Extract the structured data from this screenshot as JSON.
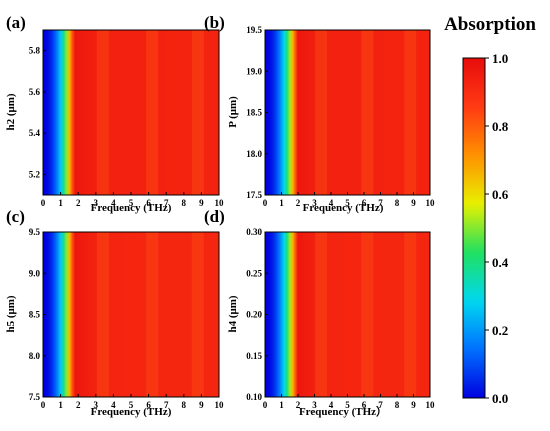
{
  "colorbar": {
    "title": "Absorption",
    "ticks": [
      0.0,
      0.2,
      0.4,
      0.6,
      0.8,
      1.0
    ],
    "tick_labels": [
      "0.0",
      "0.2",
      "0.4",
      "0.6",
      "0.8",
      "1.0"
    ],
    "range": [
      0,
      1
    ],
    "colormap": [
      "#0000e0",
      "#0070ff",
      "#00d8f0",
      "#20e060",
      "#e8f000",
      "#ff9000",
      "#ff3a14",
      "#e80c0c"
    ]
  },
  "chart_data": [
    {
      "type": "heatmap",
      "panel_label": "(a)",
      "xlabel": "Frequency (THz)",
      "ylabel": "h2 (μm)",
      "xlim": [
        0,
        10
      ],
      "ylim": [
        5.1,
        5.9
      ],
      "xticks": [
        0,
        1,
        2,
        3,
        4,
        5,
        6,
        7,
        8,
        9,
        10
      ],
      "xtick_labels": [
        "0",
        "1",
        "2",
        "3",
        "4",
        "5",
        "6",
        "7",
        "8",
        "9",
        "10"
      ],
      "yticks": [
        5.2,
        5.4,
        5.6,
        5.8
      ],
      "ytick_labels": [
        "5.2",
        "5.4",
        "5.6",
        "5.8"
      ],
      "edge_freq": 1.8,
      "plateau": 0.93
    },
    {
      "type": "heatmap",
      "panel_label": "(b)",
      "xlabel": "Frequency (THz)",
      "ylabel": "P (μm)",
      "xlim": [
        0,
        10
      ],
      "ylim": [
        17.5,
        19.5
      ],
      "xticks": [
        0,
        1,
        2,
        3,
        4,
        5,
        6,
        7,
        8,
        9,
        10
      ],
      "xtick_labels": [
        "0",
        "1",
        "2",
        "3",
        "4",
        "5",
        "6",
        "7",
        "8",
        "9",
        "10"
      ],
      "yticks": [
        17.5,
        18.0,
        18.5,
        19.0,
        19.5
      ],
      "ytick_labels": [
        "17.5",
        "18.0",
        "18.5",
        "19.0",
        "19.5"
      ],
      "edge_freq": 2.0,
      "plateau": 0.93
    },
    {
      "type": "heatmap",
      "panel_label": "(c)",
      "xlabel": "Frequency (THz)",
      "ylabel": "h5 (μm)",
      "xlim": [
        0,
        10
      ],
      "ylim": [
        7.5,
        9.5
      ],
      "xticks": [
        0,
        1,
        2,
        3,
        4,
        5,
        6,
        7,
        8,
        9,
        10
      ],
      "xtick_labels": [
        "0",
        "1",
        "2",
        "3",
        "4",
        "5",
        "6",
        "7",
        "8",
        "9",
        "10"
      ],
      "yticks": [
        7.5,
        8.0,
        8.5,
        9.0,
        9.5
      ],
      "ytick_labels": [
        "7.5",
        "8.0",
        "8.5",
        "9.0",
        "9.5"
      ],
      "edge_freq": 1.8,
      "plateau": 0.92
    },
    {
      "type": "heatmap",
      "panel_label": "(d)",
      "xlabel": "Frequency (THz）",
      "ylabel": "h4 (μm)",
      "xlim": [
        0,
        10
      ],
      "ylim": [
        0.1,
        0.3
      ],
      "xticks": [
        0,
        1,
        2,
        3,
        4,
        5,
        6,
        7,
        8,
        9,
        10
      ],
      "xtick_labels": [
        "0",
        "1",
        "2",
        "3",
        "4",
        "5",
        "6",
        "7",
        "8",
        "9",
        "10"
      ],
      "yticks": [
        0.1,
        0.15,
        0.2,
        0.25,
        0.3
      ],
      "ytick_labels": [
        "0.10",
        "0.15",
        "0.20",
        "0.25",
        "0.30"
      ],
      "edge_freq": 2.0,
      "plateau": 0.92
    }
  ]
}
